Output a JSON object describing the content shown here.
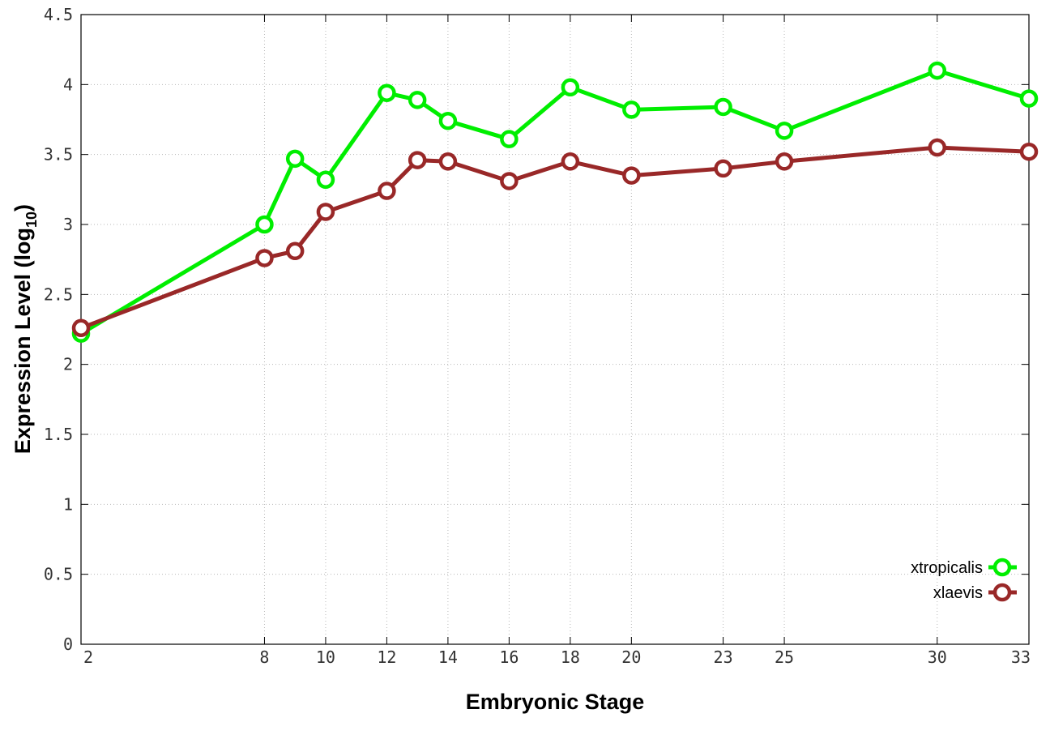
{
  "chart_data": {
    "type": "line",
    "title": "",
    "xlabel": "Embryonic Stage",
    "ylabel": "Expression Level (log",
    "ylabel_subscript": "10",
    "ylabel_close": ")",
    "x": [
      2,
      8,
      9,
      10,
      12,
      13,
      14,
      16,
      18,
      20,
      23,
      25,
      30,
      33
    ],
    "xticks": [
      2,
      8,
      10,
      12,
      14,
      16,
      18,
      20,
      23,
      25,
      30,
      33
    ],
    "xtick_labels": [
      "2",
      "8",
      "10",
      "12",
      "14",
      "16",
      "18",
      "20",
      "23",
      "25",
      "30",
      "33"
    ],
    "xlim": [
      2,
      33
    ],
    "yticks": [
      0,
      0.5,
      1,
      1.5,
      2,
      2.5,
      3,
      3.5,
      4,
      4.5
    ],
    "ytick_labels": [
      "0",
      "0.5",
      "1",
      "1.5",
      "2",
      "2.5",
      "3",
      "3.5",
      "4",
      "4.5"
    ],
    "ylim": [
      0,
      4.5
    ],
    "grid": true,
    "legend_position": "bottom-right",
    "series": [
      {
        "name": "xtropicalis",
        "color": "#00ee00",
        "values": [
          2.22,
          3.0,
          3.47,
          3.32,
          3.94,
          3.89,
          3.74,
          3.61,
          3.98,
          3.82,
          3.84,
          3.67,
          4.1,
          3.9
        ]
      },
      {
        "name": "xlaevis",
        "color": "#992828",
        "values": [
          2.26,
          2.76,
          2.81,
          3.09,
          3.24,
          3.46,
          3.45,
          3.31,
          3.45,
          3.35,
          3.4,
          3.45,
          3.55,
          3.52
        ]
      }
    ]
  }
}
